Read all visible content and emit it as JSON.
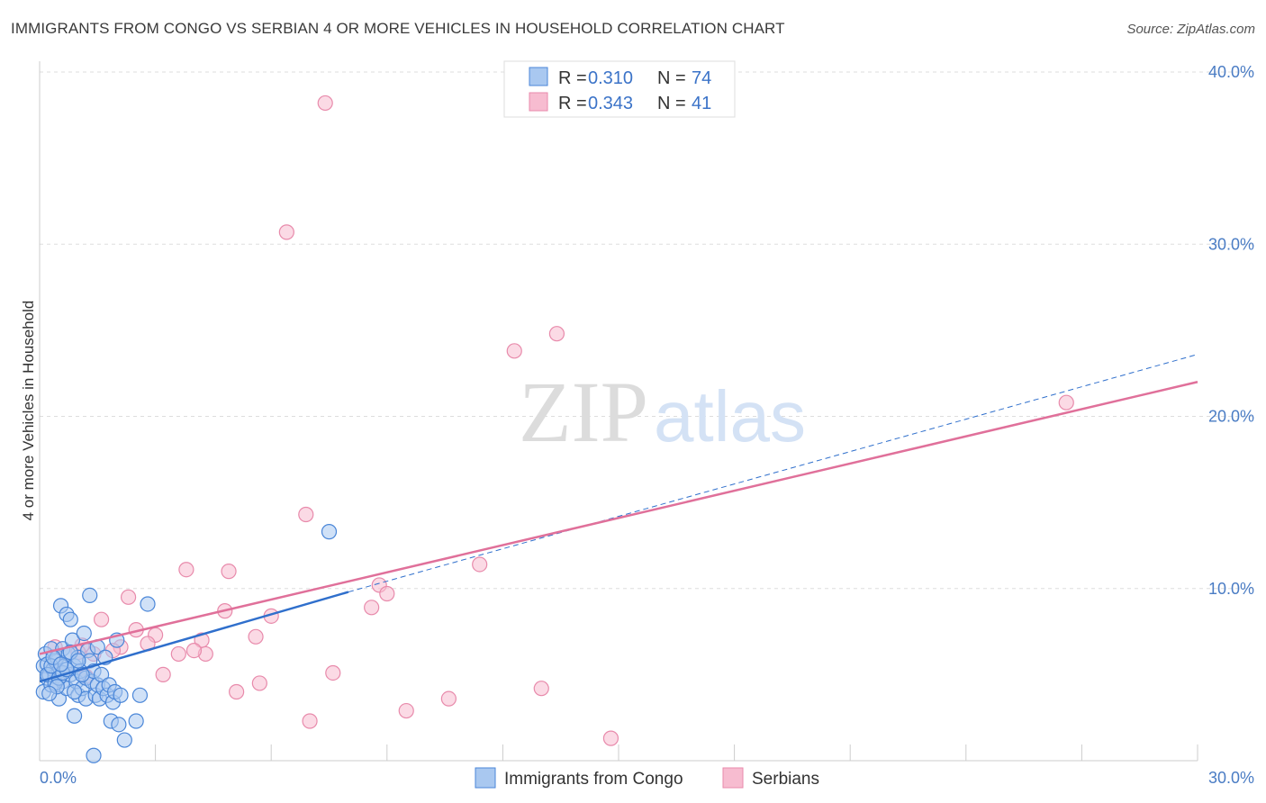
{
  "title": "IMMIGRANTS FROM CONGO VS SERBIAN 4 OR MORE VEHICLES IN HOUSEHOLD CORRELATION CHART",
  "source": "Source: ZipAtlas.com",
  "watermark": {
    "zip": "ZIP",
    "atlas": "atlas"
  },
  "colors": {
    "blue_fill": "#a9c8f0",
    "blue_stroke": "#4a86d8",
    "blue_line": "#2f6fcc",
    "pink_fill": "#f7bcd0",
    "pink_stroke": "#e88aab",
    "pink_line": "#e0709a",
    "grid": "#dddddd",
    "tick_text": "#4a7cc4"
  },
  "legend": {
    "r_label": "R =",
    "n_label": "N =",
    "rows": [
      {
        "r": "0.310",
        "n": "74"
      },
      {
        "r": "0.343",
        "n": "41"
      }
    ]
  },
  "chart_data": {
    "type": "scatter",
    "title": "IMMIGRANTS FROM CONGO VS SERBIAN 4 OR MORE VEHICLES IN HOUSEHOLD CORRELATION CHART",
    "xlabel": "",
    "ylabel": "4 or more Vehicles in Household",
    "xlim": [
      0,
      30
    ],
    "ylim": [
      0,
      40
    ],
    "x_tick_labels": [
      "0.0%",
      "30.0%"
    ],
    "y_ticks": [
      10,
      20,
      30,
      40
    ],
    "y_tick_labels": [
      "10.0%",
      "20.0%",
      "30.0%",
      "40.0%"
    ],
    "series": [
      {
        "name": "Immigrants from Congo",
        "color": "#a9c8f0",
        "trend": {
          "x0": 0,
          "y0": 4.6,
          "x1": 8.0,
          "y1": 9.8,
          "dashed_to_x": 30,
          "dashed_to_y": 23.6
        },
        "points": [
          [
            0.1,
            5.5
          ],
          [
            0.1,
            4.0
          ],
          [
            0.15,
            6.2
          ],
          [
            0.2,
            4.8
          ],
          [
            0.2,
            5.6
          ],
          [
            0.25,
            5.0
          ],
          [
            0.3,
            6.5
          ],
          [
            0.3,
            4.4
          ],
          [
            0.35,
            5.3
          ],
          [
            0.4,
            4.9
          ],
          [
            0.4,
            5.8
          ],
          [
            0.45,
            6.0
          ],
          [
            0.5,
            5.2
          ],
          [
            0.5,
            3.6
          ],
          [
            0.55,
            9.0
          ],
          [
            0.6,
            4.6
          ],
          [
            0.6,
            6.5
          ],
          [
            0.65,
            5.5
          ],
          [
            0.7,
            8.5
          ],
          [
            0.7,
            4.2
          ],
          [
            0.75,
            6.2
          ],
          [
            0.8,
            5.0
          ],
          [
            0.8,
            8.2
          ],
          [
            0.85,
            7.0
          ],
          [
            0.9,
            5.5
          ],
          [
            0.9,
            2.6
          ],
          [
            0.95,
            4.6
          ],
          [
            1.0,
            6.0
          ],
          [
            1.0,
            3.8
          ],
          [
            1.05,
            5.2
          ],
          [
            1.1,
            4.2
          ],
          [
            1.15,
            7.4
          ],
          [
            1.2,
            4.8
          ],
          [
            1.2,
            3.6
          ],
          [
            1.25,
            6.4
          ],
          [
            1.3,
            5.8
          ],
          [
            1.3,
            9.6
          ],
          [
            1.35,
            4.6
          ],
          [
            1.4,
            5.2
          ],
          [
            1.45,
            3.8
          ],
          [
            1.5,
            6.6
          ],
          [
            1.5,
            4.4
          ],
          [
            1.55,
            3.6
          ],
          [
            1.6,
            5.0
          ],
          [
            1.65,
            4.2
          ],
          [
            1.7,
            6.0
          ],
          [
            1.75,
            3.8
          ],
          [
            1.8,
            4.4
          ],
          [
            1.85,
            2.3
          ],
          [
            1.9,
            3.4
          ],
          [
            1.95,
            4.0
          ],
          [
            2.0,
            7.0
          ],
          [
            2.05,
            2.1
          ],
          [
            2.1,
            3.8
          ],
          [
            2.2,
            1.2
          ],
          [
            2.5,
            2.3
          ],
          [
            2.6,
            3.8
          ],
          [
            2.8,
            9.1
          ],
          [
            7.5,
            13.3
          ],
          [
            1.4,
            0.3
          ],
          [
            0.2,
            5.0
          ],
          [
            0.3,
            5.5
          ],
          [
            0.4,
            4.5
          ],
          [
            0.5,
            4.8
          ],
          [
            0.6,
            5.1
          ],
          [
            0.7,
            5.3
          ],
          [
            0.9,
            4.0
          ],
          [
            1.1,
            5.0
          ],
          [
            0.35,
            6.0
          ],
          [
            0.45,
            4.3
          ],
          [
            0.55,
            5.6
          ],
          [
            0.8,
            6.3
          ],
          [
            1.0,
            5.8
          ],
          [
            0.25,
            3.9
          ]
        ]
      },
      {
        "name": "Serbians",
        "color": "#f7bcd0",
        "trend": {
          "x0": 0,
          "y0": 6.2,
          "x1": 30,
          "y1": 22.0
        },
        "points": [
          [
            7.4,
            38.2
          ],
          [
            6.4,
            30.7
          ],
          [
            13.4,
            24.8
          ],
          [
            12.3,
            23.8
          ],
          [
            26.6,
            20.8
          ],
          [
            6.9,
            14.3
          ],
          [
            11.4,
            11.4
          ],
          [
            3.8,
            11.1
          ],
          [
            4.9,
            11.0
          ],
          [
            8.8,
            10.2
          ],
          [
            2.3,
            9.5
          ],
          [
            9.0,
            9.7
          ],
          [
            8.6,
            8.9
          ],
          [
            4.8,
            8.7
          ],
          [
            6.0,
            8.4
          ],
          [
            1.6,
            8.2
          ],
          [
            2.5,
            7.6
          ],
          [
            3.0,
            7.3
          ],
          [
            5.6,
            7.2
          ],
          [
            1.1,
            6.7
          ],
          [
            2.1,
            6.6
          ],
          [
            2.8,
            6.8
          ],
          [
            4.2,
            7.0
          ],
          [
            4.3,
            6.2
          ],
          [
            3.6,
            6.2
          ],
          [
            1.4,
            6.2
          ],
          [
            1.9,
            6.4
          ],
          [
            4.0,
            6.4
          ],
          [
            3.2,
            5.0
          ],
          [
            7.6,
            5.1
          ],
          [
            1.0,
            6.3
          ],
          [
            5.7,
            4.5
          ],
          [
            5.1,
            4.0
          ],
          [
            13.0,
            4.2
          ],
          [
            10.6,
            3.6
          ],
          [
            9.5,
            2.9
          ],
          [
            7.0,
            2.3
          ],
          [
            14.8,
            1.3
          ],
          [
            0.6,
            5.1
          ],
          [
            1.2,
            4.9
          ],
          [
            0.4,
            6.6
          ]
        ]
      }
    ]
  }
}
